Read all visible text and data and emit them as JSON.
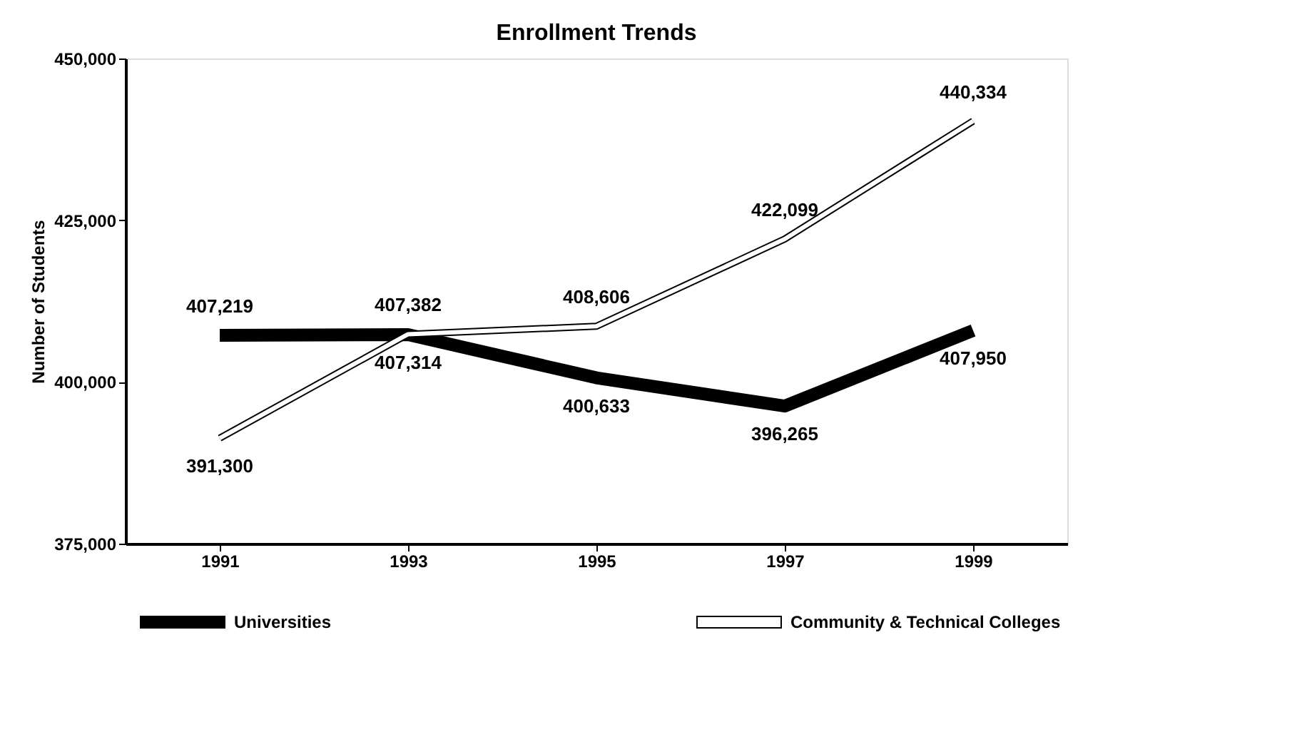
{
  "chart_data": {
    "type": "line",
    "title": "Enrollment Trends",
    "ylabel": "Number of Students",
    "categories": [
      "1991",
      "1993",
      "1995",
      "1997",
      "1999"
    ],
    "series": [
      {
        "name": "Universities",
        "color": "#000000",
        "values": [
          407219,
          407314,
          400633,
          396265,
          407950
        ],
        "value_labels": [
          "407,219",
          "407,314",
          "400,633",
          "396,265",
          "407,950"
        ]
      },
      {
        "name": "Community & Technical Colleges",
        "color": "#ffffff",
        "values": [
          391300,
          407382,
          408606,
          422099,
          440334
        ],
        "value_labels": [
          "391,300",
          "407,382",
          "408,606",
          "422,099",
          "440,334"
        ]
      }
    ],
    "ylim": [
      375000,
      450000
    ],
    "yticks": [
      {
        "value": 375000,
        "label": "375,000"
      },
      {
        "value": 400000,
        "label": "400,000"
      },
      {
        "value": 425000,
        "label": "425,000"
      },
      {
        "value": 450000,
        "label": "450,000"
      }
    ],
    "grid": false,
    "legend": "bottom",
    "marker": "none",
    "line_style": "solid"
  }
}
